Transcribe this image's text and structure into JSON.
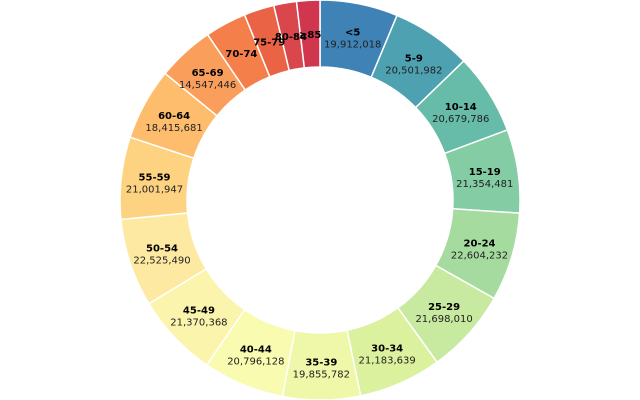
{
  "chart_data": {
    "type": "pie",
    "subtype": "donut",
    "categories": [
      "<5",
      "5-9",
      "10-14",
      "15-19",
      "20-24",
      "25-29",
      "30-34",
      "35-39",
      "40-44",
      "45-49",
      "50-54",
      "55-59",
      "60-64",
      "65-69",
      "70-74",
      "75-79",
      "80-84",
      "≥85"
    ],
    "values": [
      19912018,
      20501982,
      20679786,
      21354481,
      22604232,
      21698010,
      21183639,
      19855782,
      20796128,
      21370368,
      22525490,
      21001947,
      18415681,
      14547446,
      10587721,
      7730129,
      5811429,
      5938752
    ],
    "value_labels": [
      "19,912,018",
      "20,501,982",
      "20,679,786",
      "21,354,481",
      "22,604,232",
      "21,698,010",
      "21,183,639",
      "19,855,782",
      "20,796,128",
      "21,370,368",
      "22,525,490",
      "21,001,947",
      "18,415,681",
      "14,547,446",
      "",
      "",
      "",
      ""
    ],
    "colors": [
      "#3e82b6",
      "#4ea1b1",
      "#67bba9",
      "#84cca4",
      "#a6dba0",
      "#c7e9a0",
      "#dcf19d",
      "#eef8a8",
      "#f8fbb0",
      "#fbf4ad",
      "#fde9a1",
      "#fdd382",
      "#fdbd6d",
      "#fa9f5b",
      "#f47f4b",
      "#ea6344",
      "#d9464b",
      "#d0364e"
    ],
    "title": "",
    "legend": "none"
  }
}
